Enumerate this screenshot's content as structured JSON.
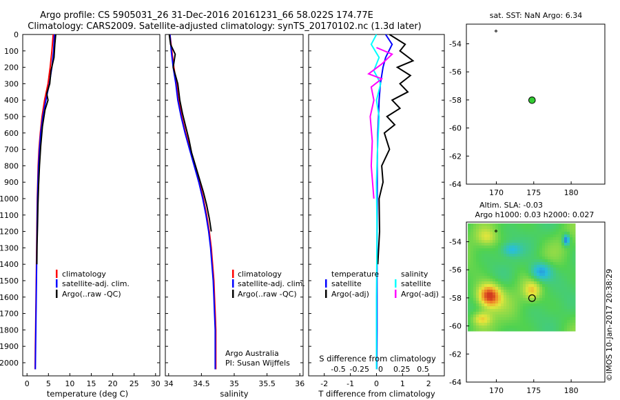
{
  "header": {
    "line1": "Argo profile: CS 5905031_26 31-Dec-2016 20161231_66 58.022S 174.77E",
    "line2": "Climatology: CARS2009. Satellite-adjusted climatology: synTS_20170102.nc (1.3d later)"
  },
  "depth_ticks": [
    "0",
    "100",
    "200",
    "300",
    "400",
    "500",
    "600",
    "700",
    "800",
    "900",
    "1000",
    "1100",
    "1200",
    "1300",
    "1400",
    "1500",
    "1600",
    "1700",
    "1800",
    "1900",
    "2000"
  ],
  "panels": {
    "temperature": {
      "xlabel": "temperature (deg C)",
      "xticks": [
        "0",
        "5",
        "10",
        "15",
        "20",
        "25",
        "30"
      ],
      "legend": [
        "climatology",
        "satellite-adj. clim.",
        "Argo(..raw -QC)"
      ]
    },
    "salinity": {
      "xlabel": "salinity",
      "xticks": [
        "34",
        "34.5",
        "35",
        "35.5",
        "36"
      ],
      "legend": [
        "climatology",
        "satellite-adj. clim.",
        "Argo(..raw -QC)"
      ],
      "credit1": "Argo Australia",
      "credit2": "PI: Susan Wijffels"
    },
    "difference": {
      "xlabel": "T difference from climatology",
      "xticks": [
        "-2",
        "-1",
        "0",
        "1",
        "2"
      ],
      "top_label": "S difference from climatology",
      "top_ticks": [
        "-0.5",
        "-0.25",
        "0",
        "0.25",
        "0.5"
      ],
      "legend_t_title": "temperature",
      "legend_t": [
        "satellite",
        "Argo(-adj)"
      ],
      "legend_s_title": "salinity",
      "legend_s": [
        "satellite",
        "Argo(-adj)"
      ]
    }
  },
  "map_sst": {
    "title": "sat. SST: NaN Argo: 6.34",
    "yticks": [
      "-54",
      "-56",
      "-58",
      "-60",
      "-62",
      "-64"
    ],
    "xticks": [
      "170",
      "175",
      "180"
    ]
  },
  "map_sla": {
    "title1": "Altim. SLA: -0.03",
    "title2": "Argo h1000: 0.03 h2000: 0.027",
    "yticks": [
      "-54",
      "-56",
      "-58",
      "-60",
      "-62",
      "-64"
    ],
    "xticks": [
      "170",
      "175",
      "180"
    ]
  },
  "watermark": "©IMOS 10-Jan-2017 20:38:29",
  "colors": {
    "climatology": "#ff0000",
    "satellite_adj": "#0000ff",
    "argo": "#000000",
    "salinity_satellite": "#00ffff",
    "salinity_argo": "#ff00ff",
    "profile_dot": "#33cc33"
  },
  "chart_data": [
    {
      "type": "line",
      "panel": "temperature",
      "xlabel": "temperature (deg C)",
      "ylabel": "depth",
      "xlim": [
        -1,
        31
      ],
      "ylim": [
        2080,
        0
      ],
      "series": [
        {
          "name": "climatology",
          "x": [
            6.1,
            5.8,
            5.4,
            4.9,
            4.1,
            3.5,
            3.1,
            2.8,
            2.6,
            2.5,
            2.4,
            2.35,
            2.3,
            2.25,
            2.2,
            2.15,
            2.1,
            2.05,
            2.0,
            1.95,
            1.9
          ],
          "y": [
            0,
            100,
            200,
            300,
            400,
            500,
            600,
            700,
            800,
            900,
            1000,
            1100,
            1200,
            1300,
            1400,
            1500,
            1600,
            1700,
            1800,
            1900,
            2040
          ]
        },
        {
          "name": "satellite-adj. clim.",
          "x": [
            6.4,
            6.2,
            5.8,
            5.2,
            4.4,
            3.7,
            3.2,
            2.9,
            2.7,
            2.55,
            2.45,
            2.4,
            2.35,
            2.3,
            2.25,
            2.2,
            2.15,
            2.1,
            2.05,
            2.0,
            1.95
          ],
          "y": [
            0,
            100,
            200,
            300,
            400,
            500,
            600,
            700,
            800,
            900,
            1000,
            1100,
            1200,
            1300,
            1400,
            1500,
            1600,
            1700,
            1800,
            1900,
            2040
          ]
        },
        {
          "name": "Argo(..raw -QC)",
          "x": [
            6.7,
            6.5,
            6.3,
            5.6,
            5.3,
            4.6,
            4.9,
            4.2,
            3.6,
            3.2,
            2.9,
            2.7,
            2.55,
            2.45,
            2.35,
            2.3
          ],
          "y": [
            0,
            60,
            140,
            220,
            300,
            360,
            400,
            460,
            560,
            680,
            800,
            920,
            1040,
            1160,
            1280,
            1400
          ]
        }
      ]
    },
    {
      "type": "line",
      "panel": "salinity",
      "xlabel": "salinity",
      "ylabel": "depth",
      "xlim": [
        33.95,
        36.05
      ],
      "ylim": [
        2080,
        0
      ],
      "series": [
        {
          "name": "climatology",
          "x": [
            34.02,
            34.05,
            34.08,
            34.12,
            34.15,
            34.2,
            34.26,
            34.33,
            34.4,
            34.47,
            34.53,
            34.58,
            34.62,
            34.65,
            34.67,
            34.69,
            34.7,
            34.71,
            34.72,
            34.72
          ],
          "y": [
            0,
            100,
            200,
            300,
            400,
            500,
            600,
            700,
            800,
            900,
            1000,
            1100,
            1200,
            1300,
            1400,
            1500,
            1600,
            1700,
            1800,
            2040
          ]
        },
        {
          "name": "satellite-adj. clim.",
          "x": [
            34.02,
            34.04,
            34.07,
            34.11,
            34.14,
            34.19,
            34.25,
            34.32,
            34.39,
            34.46,
            34.52,
            34.57,
            34.61,
            34.64,
            34.66,
            34.68,
            34.69,
            34.7,
            34.71,
            34.71
          ],
          "y": [
            0,
            100,
            200,
            300,
            400,
            500,
            600,
            700,
            800,
            900,
            1000,
            1100,
            1200,
            1300,
            1400,
            1500,
            1600,
            1700,
            1800,
            2040
          ]
        },
        {
          "name": "Argo(..raw -QC)",
          "x": [
            34.01,
            34.03,
            34.1,
            34.07,
            34.14,
            34.17,
            34.21,
            34.26,
            34.31,
            34.35,
            34.41,
            34.47,
            34.53,
            34.58,
            34.62,
            34.65
          ],
          "y": [
            0,
            60,
            120,
            200,
            300,
            400,
            480,
            560,
            640,
            720,
            800,
            880,
            960,
            1040,
            1120,
            1200
          ]
        }
      ]
    },
    {
      "type": "line",
      "panel": "difference",
      "xlabel": "T difference from climatology",
      "top_axis_label": "S difference from climatology",
      "xlim": [
        -2.6,
        2.6
      ],
      "ylim": [
        2080,
        0
      ],
      "series": [
        {
          "name": "satellite",
          "variable": "temperature",
          "x": [
            0.35,
            0.6,
            0.35,
            0.25,
            0.15,
            0.1,
            0.08,
            0.05,
            0.04,
            0.03,
            0.03,
            0.02,
            0.02,
            0.02,
            0.02,
            0.01
          ],
          "y": [
            0,
            60,
            140,
            200,
            300,
            400,
            500,
            600,
            700,
            800,
            1000,
            1200,
            1400,
            1600,
            1800,
            2040
          ]
        },
        {
          "name": "Argo(-adj)",
          "variable": "temperature",
          "x": [
            0.5,
            1.1,
            0.9,
            1.4,
            0.8,
            1.3,
            0.9,
            1.2,
            0.6,
            0.9,
            0.4,
            0.7,
            0.3,
            0.5,
            0.2,
            0.25,
            0.1,
            0.12,
            0.05
          ],
          "y": [
            0,
            60,
            100,
            160,
            200,
            250,
            300,
            350,
            400,
            450,
            500,
            550,
            600,
            700,
            800,
            900,
            1000,
            1200,
            1400
          ]
        },
        {
          "name": "satellite",
          "variable": "salinity",
          "x": [
            0.0,
            -0.1,
            0.05,
            -0.05,
            0.08,
            0.0,
            0.05,
            0.02,
            0.0,
            0.01,
            0.0,
            0.0
          ],
          "y": [
            0,
            60,
            140,
            220,
            300,
            400,
            500,
            700,
            900,
            1200,
            1600,
            2040
          ]
        },
        {
          "name": "Argo(-adj)",
          "variable": "salinity",
          "x": [
            0.0,
            0.3,
            0.1,
            -0.15,
            0.1,
            -0.1,
            -0.05,
            -0.12,
            -0.08,
            -0.1,
            -0.05
          ],
          "y": [
            80,
            120,
            180,
            240,
            270,
            320,
            400,
            500,
            650,
            800,
            1000
          ]
        }
      ]
    },
    {
      "type": "scatter",
      "panel": "sat-sst-map",
      "title": "sat. SST: NaN Argo: 6.34",
      "xlim": [
        166,
        184.5
      ],
      "ylim": [
        -64,
        -52.6
      ],
      "points": [
        {
          "x": 174.77,
          "y": -58.02
        }
      ]
    },
    {
      "type": "heatmap",
      "panel": "altim-sla-map",
      "title": "Altim. SLA: -0.03 / Argo h1000: 0.03 h2000: 0.027",
      "xlim": [
        166,
        184.5
      ],
      "ylim": [
        -64,
        -52.6
      ],
      "points": [
        {
          "x": 174.77,
          "y": -58.02
        }
      ]
    }
  ]
}
